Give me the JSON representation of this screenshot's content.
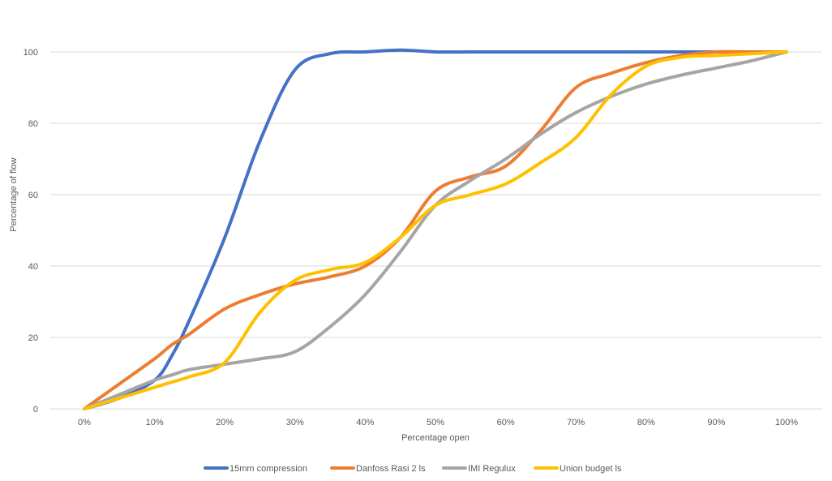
{
  "chart_data": {
    "type": "line",
    "title": "",
    "xlabel": "Percentage open",
    "ylabel": "Percentage of flow",
    "categories": [
      "0%",
      "10%",
      "20%",
      "30%",
      "40%",
      "50%",
      "60%",
      "70%",
      "80%",
      "90%",
      "100%"
    ],
    "x": [
      0,
      5,
      10,
      12.5,
      15,
      20,
      25,
      30,
      35,
      40,
      45,
      50,
      55,
      60,
      65,
      70,
      75,
      80,
      85,
      90,
      95,
      100
    ],
    "ylim": [
      0,
      100
    ],
    "yticks": [
      "0",
      "20",
      "40",
      "60",
      "80",
      "100"
    ],
    "grid": true,
    "legend_position": "bottom",
    "series": [
      {
        "name": "15mm compression",
        "color": "#4472c4",
        "values": [
          0,
          3,
          8,
          15,
          25,
          48,
          75,
          95,
          99.5,
          100,
          100.5,
          100,
          100,
          100,
          100,
          100,
          100,
          100,
          100,
          100,
          100,
          100
        ]
      },
      {
        "name": "Danfoss Rasi 2 ls",
        "color": "#ed7d31",
        "values": [
          0,
          7,
          14,
          18,
          21,
          28,
          32,
          35,
          37,
          40,
          48,
          61,
          65,
          68,
          78,
          90,
          94,
          97,
          99,
          100,
          100,
          100
        ]
      },
      {
        "name": "IMI Regulux",
        "color": "#a5a5a5",
        "values": [
          0,
          4,
          8,
          9.5,
          11,
          12.5,
          14,
          16,
          23,
          32,
          44,
          57,
          64,
          70,
          77,
          83,
          87.5,
          91,
          93.5,
          95.5,
          97.5,
          100
        ]
      },
      {
        "name": "Union budget ls",
        "color": "#ffc000",
        "values": [
          0,
          3,
          6,
          7.5,
          9,
          13,
          27,
          36,
          39,
          41,
          48,
          57,
          60,
          63,
          69,
          76,
          88,
          96,
          98.5,
          99,
          99.5,
          100
        ]
      }
    ]
  }
}
